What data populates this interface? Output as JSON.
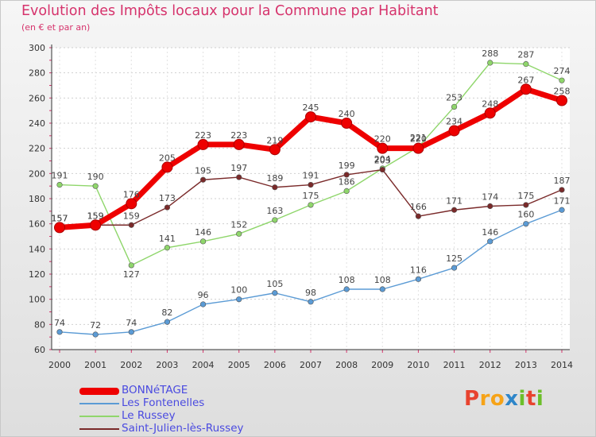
{
  "title": "Evolution des Impôts locaux pour la Commune par Habitant",
  "subtitle": "(en € et par an)",
  "logo": {
    "text": "Proxiti",
    "colors": [
      "#e8432f",
      "#f6a318",
      "#2e86c9",
      "#6cbf2a"
    ]
  },
  "chart_data": {
    "type": "line",
    "title": "Evolution des Impôts locaux pour la Commune par Habitant",
    "subtitle": "(en € et par an)",
    "xlabel": "",
    "ylabel": "",
    "ylim": [
      60,
      300
    ],
    "yticks": [
      60,
      80,
      100,
      120,
      140,
      160,
      180,
      200,
      220,
      240,
      260,
      280,
      300
    ],
    "grid": "horizontal dashed",
    "legend": "bottom-left",
    "categories": [
      "2000",
      "2001",
      "2002",
      "2003",
      "2004",
      "2005",
      "2006",
      "2007",
      "2008",
      "2009",
      "2010",
      "2011",
      "2012",
      "2013",
      "2014"
    ],
    "series": [
      {
        "name": "BONNéTAGE",
        "color": "#ee0000",
        "bold": true,
        "values": [
          157,
          159,
          176,
          205,
          223,
          223,
          219,
          245,
          240,
          220,
          220,
          234,
          248,
          267,
          258
        ]
      },
      {
        "name": "Les Fontenelles",
        "color": "#5b9bd5",
        "bold": false,
        "values": [
          74,
          72,
          74,
          82,
          96,
          100,
          105,
          98,
          108,
          108,
          116,
          125,
          146,
          160,
          171
        ]
      },
      {
        "name": "Le Russey",
        "color": "#8fd66b",
        "bold": false,
        "values": [
          191,
          190,
          127,
          141,
          146,
          152,
          163,
          175,
          186,
          204,
          221,
          253,
          288,
          287,
          274
        ]
      },
      {
        "name": "Saint-Julien-lès-Russey",
        "color": "#7a2a2a",
        "bold": false,
        "values": [
          157,
          159,
          159,
          173,
          195,
          197,
          189,
          191,
          199,
          203,
          166,
          171,
          174,
          175,
          187
        ]
      }
    ]
  }
}
